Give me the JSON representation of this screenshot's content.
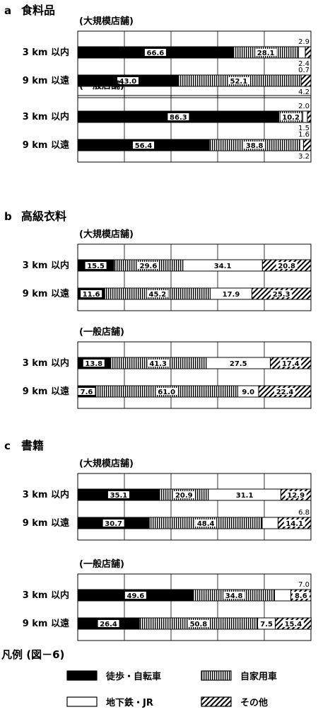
{
  "figure_caption": "凡例 (図－6)",
  "legend": [
    {
      "label": "徒歩・自転車",
      "pattern": "solid"
    },
    {
      "label": "自家用車",
      "pattern": "vstripe"
    },
    {
      "label": "地下鉄・JR",
      "pattern": "white"
    },
    {
      "label": "その他",
      "pattern": "diag"
    }
  ],
  "colors": {
    "ink": "#000000",
    "paper": "#ffffff"
  },
  "chart_data": [
    {
      "type": "bar",
      "orientation": "horizontal",
      "stacked": true,
      "panel": "a",
      "title": "食料品",
      "groups": [
        {
          "name": "(大規模店舗)",
          "rows": [
            {
              "label": "3 km 以内",
              "values": [
                66.6,
                28.1,
                2.9,
                2.4
              ]
            },
            {
              "label": "9 km 以遠",
              "values": [
                43.0,
                52.1,
                0.7,
                4.2
              ]
            }
          ]
        },
        {
          "name": "(一般店舗)",
          "rows": [
            {
              "label": "3 km 以内",
              "values": [
                86.3,
                10.2,
                2.0,
                1.5
              ]
            },
            {
              "label": "9 km 以遠",
              "values": [
                56.4,
                38.8,
                1.6,
                3.2
              ]
            }
          ]
        }
      ],
      "xlim": [
        0,
        100
      ],
      "grid": true
    },
    {
      "type": "bar",
      "orientation": "horizontal",
      "stacked": true,
      "panel": "b",
      "title": "高級衣料",
      "groups": [
        {
          "name": "(大規模店舗)",
          "rows": [
            {
              "label": "3 km 以内",
              "values": [
                15.5,
                29.6,
                34.1,
                20.8
              ]
            },
            {
              "label": "9 km 以遠",
              "values": [
                11.6,
                45.2,
                17.9,
                25.3
              ]
            }
          ]
        },
        {
          "name": "(一般店舗)",
          "rows": [
            {
              "label": "3 km 以内",
              "values": [
                13.8,
                41.3,
                27.5,
                17.4
              ]
            },
            {
              "label": "9 km 以遠",
              "values": [
                7.6,
                61.0,
                9.0,
                22.4
              ]
            }
          ]
        }
      ],
      "xlim": [
        0,
        100
      ],
      "grid": true
    },
    {
      "type": "bar",
      "orientation": "horizontal",
      "stacked": true,
      "panel": "c",
      "title": "書籍",
      "groups": [
        {
          "name": "(大規模店舗)",
          "rows": [
            {
              "label": "3 km 以内",
              "values": [
                35.1,
                20.9,
                31.1,
                12.9
              ]
            },
            {
              "label": "9 km 以遠",
              "values": [
                30.7,
                48.4,
                6.8,
                14.1
              ]
            }
          ]
        },
        {
          "name": "(一般店舗)",
          "rows": [
            {
              "label": "3 km 以内",
              "values": [
                49.6,
                34.8,
                7.0,
                8.6
              ]
            },
            {
              "label": "9 km 以遠",
              "values": [
                26.4,
                50.8,
                7.5,
                15.4
              ]
            }
          ]
        }
      ],
      "xlim": [
        0,
        100
      ],
      "grid": true
    }
  ]
}
